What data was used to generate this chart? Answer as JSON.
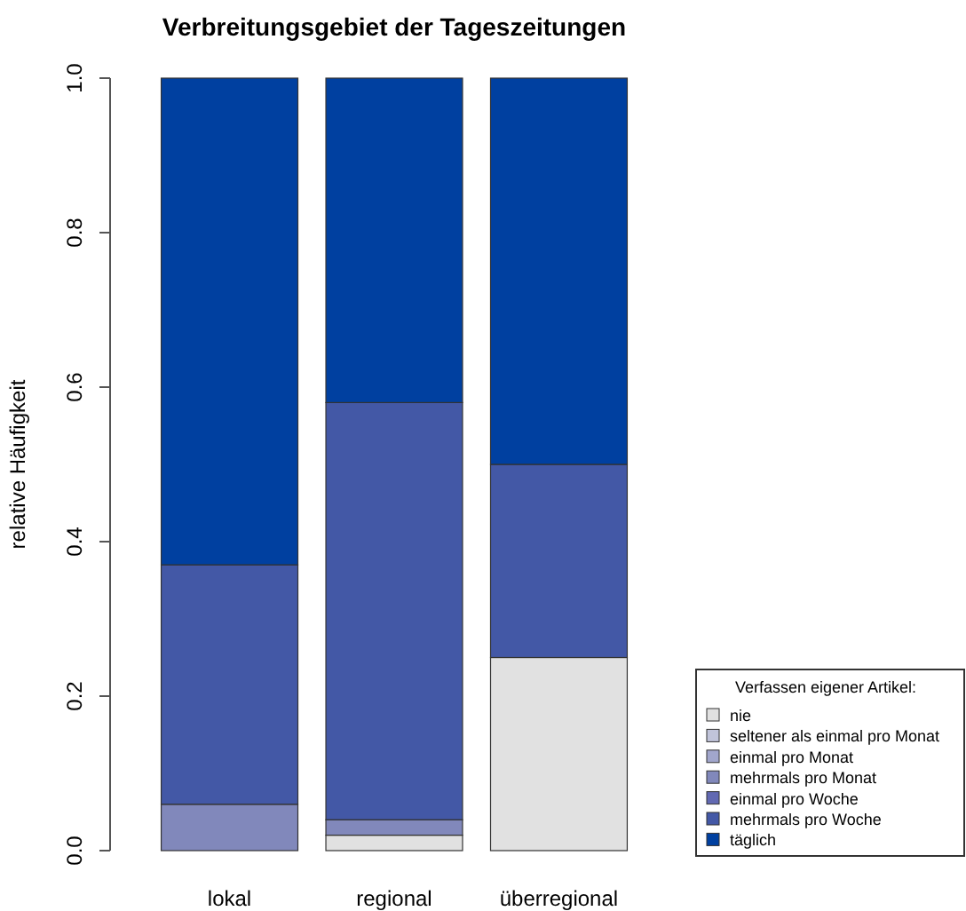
{
  "chart_data": {
    "type": "bar",
    "title": "Verbreitungsgebiet der Tageszeitungen",
    "ylabel": "relative Häufigkeit",
    "legend_title": "Verfassen eigener Artikel:",
    "categories": [
      "lokal",
      "regional",
      "überregional"
    ],
    "stacked": true,
    "ylim": [
      0,
      1
    ],
    "yticks": [
      {
        "value": 0,
        "label": "0.0"
      },
      {
        "value": 0.2,
        "label": "0.2"
      },
      {
        "value": 0.4,
        "label": "0.4"
      },
      {
        "value": 0.6,
        "label": "0.6"
      },
      {
        "value": 0.8,
        "label": "0.8"
      },
      {
        "value": 1,
        "label": "1.0"
      }
    ],
    "legend": "bottom right",
    "grid": false,
    "series": [
      {
        "name": "nie",
        "color": "#e1e1e1",
        "values": [
          0,
          0.02,
          0.25
        ]
      },
      {
        "name": "seltener als einmal pro Monat",
        "color": "#c1c4da",
        "values": [
          0,
          0,
          0
        ]
      },
      {
        "name": "einmal pro Monat",
        "color": "#a1a6cc",
        "values": [
          0,
          0,
          0
        ]
      },
      {
        "name": "mehrmals pro Monat",
        "color": "#8188bb",
        "values": [
          0.06,
          0.02,
          0
        ]
      },
      {
        "name": "einmal pro Woche",
        "color": "#6269b2",
        "values": [
          0,
          0,
          0
        ]
      },
      {
        "name": "mehrmals pro Woche",
        "color": "#4358a6",
        "values": [
          0.31,
          0.54,
          0.25
        ]
      },
      {
        "name": "täglich",
        "color": "#0040a0",
        "values": [
          0.63,
          0.42,
          0.5
        ]
      }
    ]
  }
}
